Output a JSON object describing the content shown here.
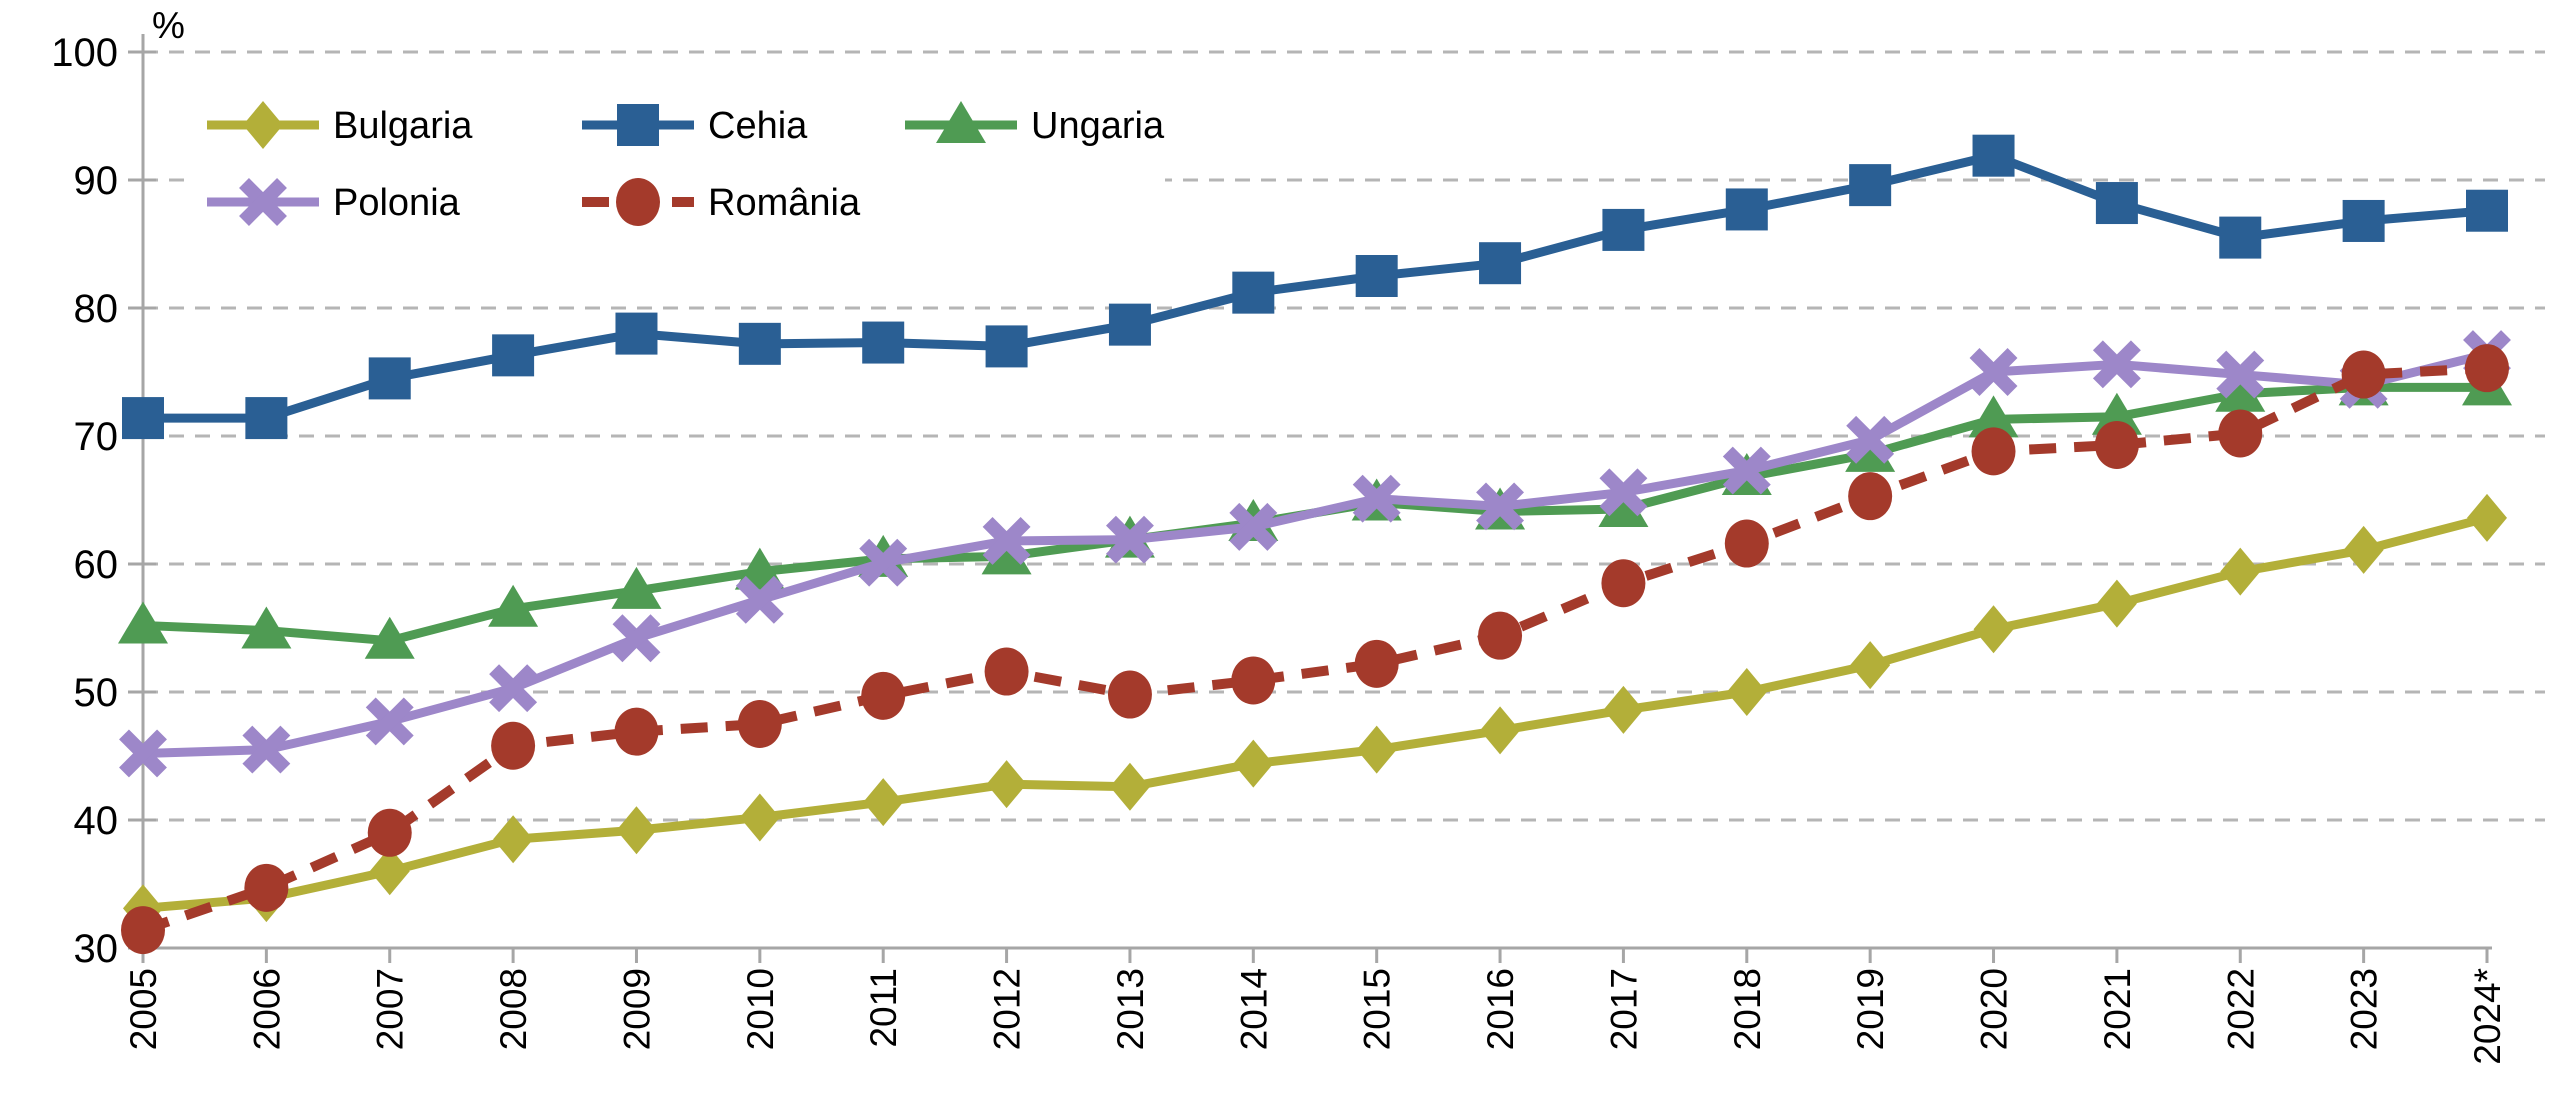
{
  "chart": {
    "unit_label": "%"
  },
  "chart_data": {
    "type": "line",
    "title": "",
    "xlabel": "",
    "ylabel": "%",
    "ylim": [
      30,
      100
    ],
    "ytick_step": 10,
    "yticks": [
      30,
      40,
      50,
      60,
      70,
      80,
      90,
      100
    ],
    "grid": "horizontal-dashed",
    "legend_position": "top-left-inside",
    "legend_rows": [
      [
        "Bulgaria",
        "Cehia",
        "Ungaria"
      ],
      [
        "Polonia",
        "România"
      ]
    ],
    "categories": [
      "2005",
      "2006",
      "2007",
      "2008",
      "2009",
      "2010",
      "2011",
      "2012",
      "2013",
      "2014",
      "2015",
      "2016",
      "2017",
      "2018",
      "2019",
      "2020",
      "2021",
      "2022",
      "2023",
      "2024*"
    ],
    "series": [
      {
        "name": "Bulgaria",
        "color": "#b3af39",
        "marker": "diamond",
        "line": "solid",
        "values": [
          33.1,
          33.9,
          36.0,
          38.5,
          39.2,
          40.2,
          41.4,
          42.8,
          42.6,
          44.4,
          45.5,
          47.0,
          48.6,
          50.0,
          52.1,
          54.9,
          56.9,
          59.4,
          61.1,
          63.6
        ]
      },
      {
        "name": "Cehia",
        "color": "#2a5f94",
        "marker": "square",
        "line": "solid",
        "values": [
          71.4,
          71.4,
          74.5,
          76.3,
          78.0,
          77.2,
          77.3,
          77.0,
          78.7,
          81.2,
          82.5,
          83.5,
          86.1,
          87.7,
          89.6,
          91.9,
          88.2,
          85.5,
          86.8,
          87.6
        ]
      },
      {
        "name": "Ungaria",
        "color": "#4f9b53",
        "marker": "triangle",
        "line": "solid",
        "values": [
          55.2,
          54.8,
          54.0,
          56.5,
          57.9,
          59.4,
          60.4,
          60.6,
          61.9,
          63.2,
          64.8,
          64.1,
          64.3,
          66.8,
          68.6,
          71.3,
          71.5,
          73.3,
          73.8,
          73.8
        ]
      },
      {
        "name": "Polonia",
        "color": "#9d87c9",
        "marker": "x",
        "line": "solid",
        "values": [
          45.2,
          45.5,
          47.7,
          50.3,
          54.2,
          57.2,
          60.1,
          61.8,
          61.9,
          62.9,
          65.1,
          64.5,
          65.6,
          67.3,
          69.7,
          75.0,
          75.6,
          74.8,
          74.0,
          76.4
        ]
      },
      {
        "name": "România",
        "color": "#a43a2b",
        "marker": "circle",
        "line": "dashed",
        "values": [
          31.4,
          34.7,
          39.0,
          45.8,
          46.9,
          47.5,
          49.7,
          51.6,
          49.8,
          50.9,
          52.2,
          54.4,
          58.5,
          61.6,
          65.3,
          68.8,
          69.3,
          70.2,
          74.8,
          75.3
        ]
      }
    ],
    "axis_color": "#a6a6a6",
    "grid_color": "#b5b5b5",
    "text_color": "#000000",
    "background": "#ffffff"
  }
}
